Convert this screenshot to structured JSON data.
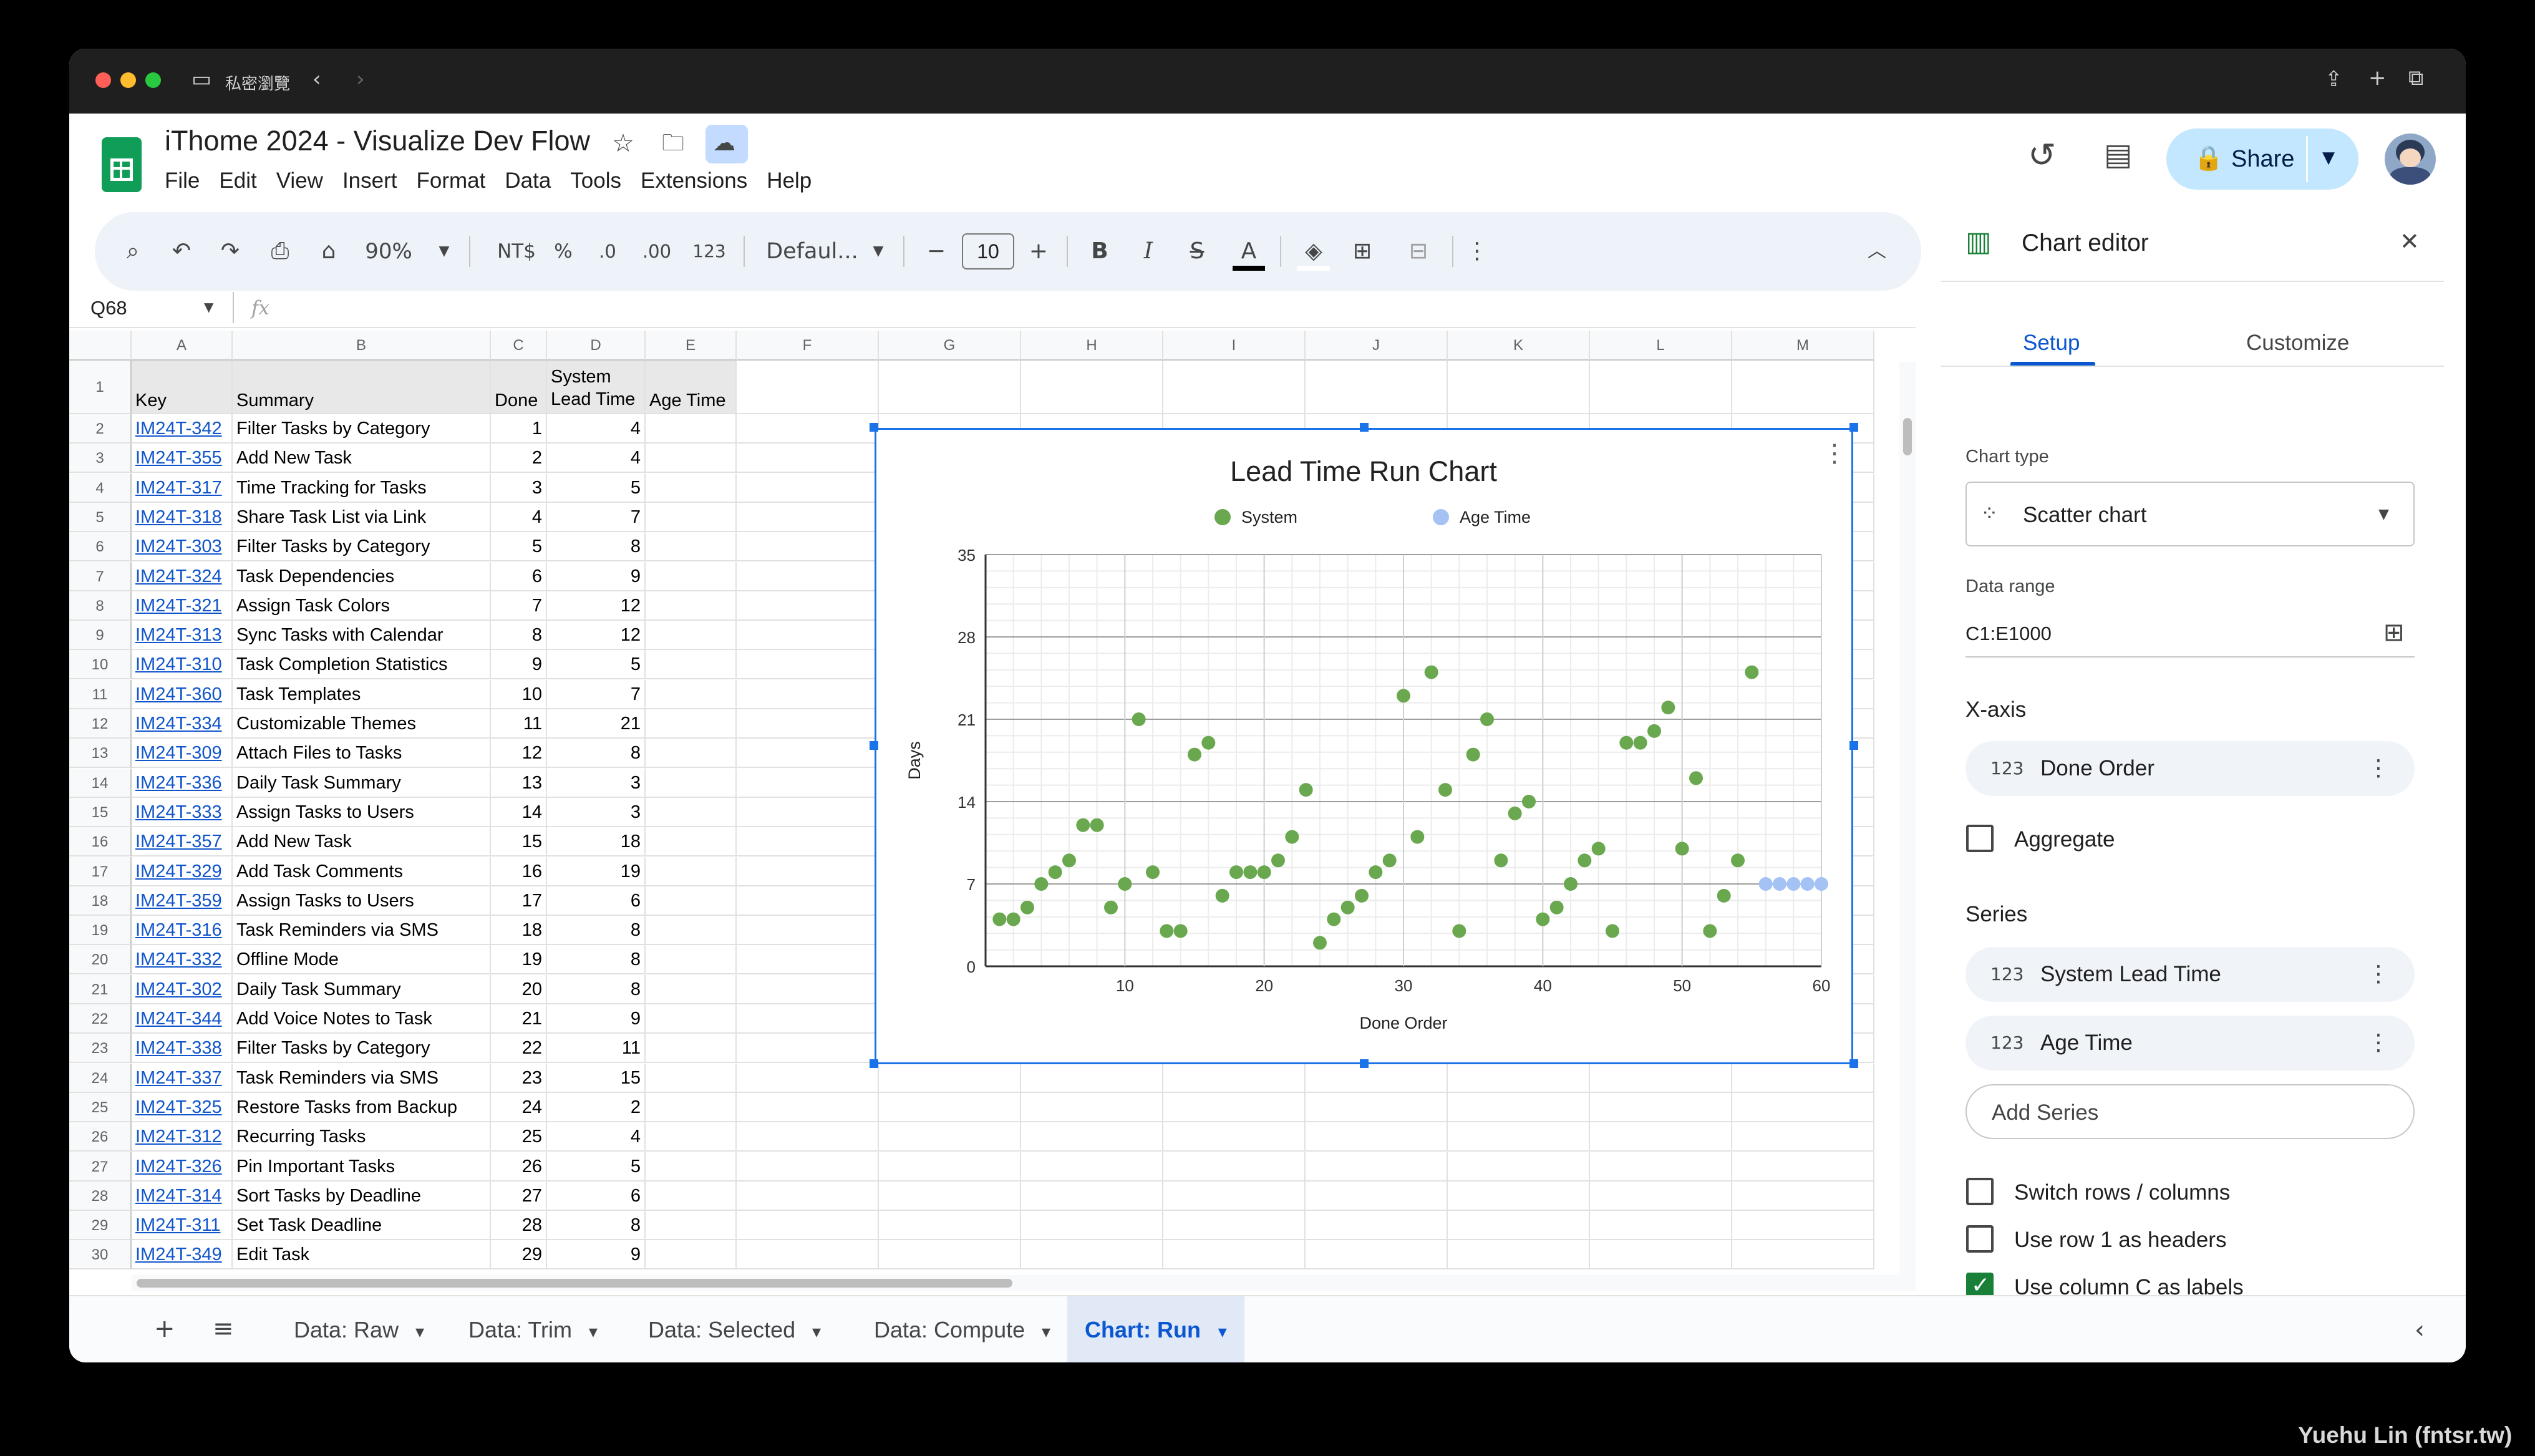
{
  "browser": {
    "private_label": "私密瀏覽"
  },
  "doc": {
    "title": "iThome 2024 - Visualize Dev Flow"
  },
  "menu": [
    "File",
    "Edit",
    "View",
    "Insert",
    "Format",
    "Data",
    "Tools",
    "Extensions",
    "Help"
  ],
  "share": {
    "label": "Share"
  },
  "toolbar": {
    "zoom": "90%",
    "currency": "NT$",
    "percent": "%",
    "dec_less": ".0",
    "dec_more": ".00",
    "number_format": "123",
    "font": "Defaul...",
    "font_size": "10"
  },
  "formula": {
    "cell_ref": "Q68",
    "fx": "fx"
  },
  "columns": [
    "A",
    "B",
    "C",
    "D",
    "E",
    "F",
    "G",
    "H",
    "I",
    "J",
    "K",
    "L",
    "M"
  ],
  "headers": {
    "key": "Key",
    "summary": "Summary",
    "done": "Done",
    "system_line1": "System",
    "system_line2": "Lead Time",
    "age": "Age Time"
  },
  "rows": [
    {
      "key": "IM24T-342",
      "summary": "Filter Tasks by Category",
      "done": 1,
      "lead": 4
    },
    {
      "key": "IM24T-355",
      "summary": "Add New Task",
      "done": 2,
      "lead": 4
    },
    {
      "key": "IM24T-317",
      "summary": "Time Tracking for Tasks",
      "done": 3,
      "lead": 5
    },
    {
      "key": "IM24T-318",
      "summary": "Share Task List via Link",
      "done": 4,
      "lead": 7
    },
    {
      "key": "IM24T-303",
      "summary": "Filter Tasks by Category",
      "done": 5,
      "lead": 8
    },
    {
      "key": "IM24T-324",
      "summary": "Task Dependencies",
      "done": 6,
      "lead": 9
    },
    {
      "key": "IM24T-321",
      "summary": "Assign Task Colors",
      "done": 7,
      "lead": 12
    },
    {
      "key": "IM24T-313",
      "summary": "Sync Tasks with Calendar",
      "done": 8,
      "lead": 12
    },
    {
      "key": "IM24T-310",
      "summary": "Task Completion Statistics",
      "done": 9,
      "lead": 5
    },
    {
      "key": "IM24T-360",
      "summary": "Task Templates",
      "done": 10,
      "lead": 7
    },
    {
      "key": "IM24T-334",
      "summary": "Customizable Themes",
      "done": 11,
      "lead": 21
    },
    {
      "key": "IM24T-309",
      "summary": "Attach Files to Tasks",
      "done": 12,
      "lead": 8
    },
    {
      "key": "IM24T-336",
      "summary": "Daily Task Summary",
      "done": 13,
      "lead": 3
    },
    {
      "key": "IM24T-333",
      "summary": "Assign Tasks to Users",
      "done": 14,
      "lead": 3
    },
    {
      "key": "IM24T-357",
      "summary": "Add New Task",
      "done": 15,
      "lead": 18
    },
    {
      "key": "IM24T-329",
      "summary": "Add Task Comments",
      "done": 16,
      "lead": 19
    },
    {
      "key": "IM24T-359",
      "summary": "Assign Tasks to Users",
      "done": 17,
      "lead": 6
    },
    {
      "key": "IM24T-316",
      "summary": "Task Reminders via SMS",
      "done": 18,
      "lead": 8
    },
    {
      "key": "IM24T-332",
      "summary": "Offline Mode",
      "done": 19,
      "lead": 8
    },
    {
      "key": "IM24T-302",
      "summary": "Daily Task Summary",
      "done": 20,
      "lead": 8
    },
    {
      "key": "IM24T-344",
      "summary": "Add Voice Notes to Task",
      "done": 21,
      "lead": 9
    },
    {
      "key": "IM24T-338",
      "summary": "Filter Tasks by Category",
      "done": 22,
      "lead": 11
    },
    {
      "key": "IM24T-337",
      "summary": "Task Reminders via SMS",
      "done": 23,
      "lead": 15
    },
    {
      "key": "IM24T-325",
      "summary": "Restore Tasks from Backup",
      "done": 24,
      "lead": 2
    },
    {
      "key": "IM24T-312",
      "summary": "Recurring Tasks",
      "done": 25,
      "lead": 4
    },
    {
      "key": "IM24T-326",
      "summary": "Pin Important Tasks",
      "done": 26,
      "lead": 5
    },
    {
      "key": "IM24T-314",
      "summary": "Sort Tasks by Deadline",
      "done": 27,
      "lead": 6
    },
    {
      "key": "IM24T-311",
      "summary": "Set Task Deadline",
      "done": 28,
      "lead": 8
    },
    {
      "key": "IM24T-349",
      "summary": "Edit Task",
      "done": 29,
      "lead": 9
    }
  ],
  "chart_data": {
    "type": "scatter",
    "title": "Lead Time Run Chart",
    "xlabel": "Done Order",
    "ylabel": "Days",
    "xlim": [
      0,
      60
    ],
    "ylim": [
      0,
      35
    ],
    "xticks": [
      10,
      20,
      30,
      40,
      50,
      60
    ],
    "yticks": [
      0,
      7,
      14,
      21,
      28,
      35
    ],
    "grid": true,
    "legend": "top",
    "series": [
      {
        "name": "System",
        "color": "#6aa84f",
        "points": [
          [
            1,
            4
          ],
          [
            2,
            4
          ],
          [
            3,
            5
          ],
          [
            4,
            7
          ],
          [
            5,
            8
          ],
          [
            6,
            9
          ],
          [
            7,
            12
          ],
          [
            8,
            12
          ],
          [
            9,
            5
          ],
          [
            10,
            7
          ],
          [
            11,
            21
          ],
          [
            12,
            8
          ],
          [
            13,
            3
          ],
          [
            14,
            3
          ],
          [
            15,
            18
          ],
          [
            16,
            19
          ],
          [
            17,
            6
          ],
          [
            18,
            8
          ],
          [
            19,
            8
          ],
          [
            20,
            8
          ],
          [
            21,
            9
          ],
          [
            22,
            11
          ],
          [
            23,
            15
          ],
          [
            24,
            2
          ],
          [
            25,
            4
          ],
          [
            26,
            5
          ],
          [
            27,
            6
          ],
          [
            28,
            8
          ],
          [
            29,
            9
          ],
          [
            30,
            23
          ],
          [
            31,
            11
          ],
          [
            32,
            25
          ],
          [
            33,
            15
          ],
          [
            34,
            3
          ],
          [
            35,
            18
          ],
          [
            36,
            21
          ],
          [
            37,
            9
          ],
          [
            38,
            13
          ],
          [
            39,
            14
          ],
          [
            40,
            4
          ],
          [
            41,
            5
          ],
          [
            42,
            7
          ],
          [
            43,
            9
          ],
          [
            44,
            10
          ],
          [
            45,
            3
          ],
          [
            46,
            19
          ],
          [
            47,
            19
          ],
          [
            48,
            20
          ],
          [
            49,
            22
          ],
          [
            50,
            10
          ],
          [
            51,
            16
          ],
          [
            52,
            3
          ],
          [
            53,
            6
          ],
          [
            54,
            9
          ],
          [
            55,
            25
          ]
        ]
      },
      {
        "name": "Age Time",
        "color": "#a4c2f4",
        "points": [
          [
            56,
            7
          ],
          [
            57,
            7
          ],
          [
            58,
            7
          ],
          [
            59,
            7
          ],
          [
            60,
            7
          ]
        ]
      }
    ]
  },
  "editor": {
    "title": "Chart editor",
    "tab_setup": "Setup",
    "tab_customize": "Customize",
    "chart_type_label": "Chart type",
    "chart_type": "Scatter chart",
    "data_range_label": "Data range",
    "data_range": "C1:E1000",
    "xaxis_label": "X-axis",
    "xaxis_value": "Done Order",
    "aggregate": "Aggregate",
    "series_label": "Series",
    "series": [
      "System Lead Time",
      "Age Time"
    ],
    "add_series": "Add Series",
    "switch": "Switch rows / columns",
    "row1": "Use row 1 as headers",
    "colc": "Use column C as labels",
    "num_icon": "123"
  },
  "sheets": [
    "Data: Raw",
    "Data: Trim",
    "Data: Selected",
    "Data: Compute",
    "Chart: Run"
  ],
  "watermark": "Yuehu Lin (fntsr.tw)"
}
